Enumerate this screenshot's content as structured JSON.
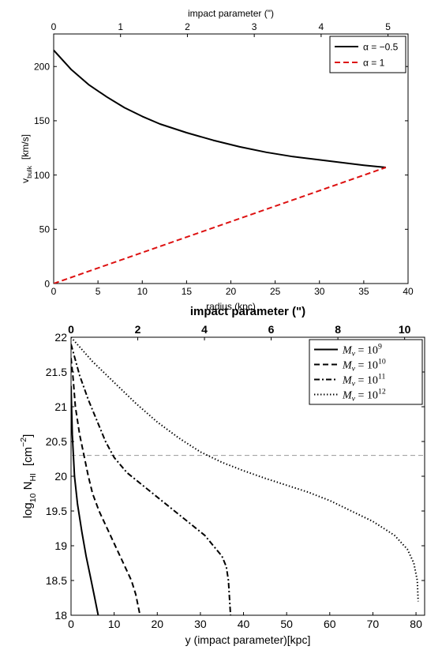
{
  "chart_data": [
    {
      "type": "line",
      "top_axis_label": "impact parameter (\")",
      "top_axis_ticks": [
        "0",
        "1",
        "2",
        "3",
        "4",
        "5"
      ],
      "xlabel": "radius (kpc)",
      "ylabel_main": "v",
      "ylabel_sub": "bulk",
      "ylabel_unit": "[km/s]",
      "xlim": [
        0,
        40
      ],
      "ylim": [
        0,
        230
      ],
      "top_xlim": [
        0,
        5.3
      ],
      "x_ticks": [
        "0",
        "5",
        "10",
        "15",
        "20",
        "25",
        "30",
        "35",
        "40"
      ],
      "y_ticks": [
        "0",
        "50",
        "100",
        "150",
        "200"
      ],
      "grid": false,
      "legend_position": "top-right",
      "series": [
        {
          "name": "α = −0.5",
          "color": "#000000",
          "dash": "solid",
          "points": [
            [
              0,
              215
            ],
            [
              2,
              197
            ],
            [
              4,
              183
            ],
            [
              6,
              172
            ],
            [
              8,
              162
            ],
            [
              10,
              154
            ],
            [
              12,
              147
            ],
            [
              15,
              139
            ],
            [
              18,
              132
            ],
            [
              21,
              126
            ],
            [
              24,
              121
            ],
            [
              27,
              117
            ],
            [
              30,
              114
            ],
            [
              33,
              111
            ],
            [
              35,
              109
            ],
            [
              37.5,
              107
            ]
          ]
        },
        {
          "name": "α = 1",
          "color": "#dd1111",
          "dash": "dashed",
          "points": [
            [
              0,
              0
            ],
            [
              37.5,
              107
            ]
          ]
        }
      ]
    },
    {
      "type": "line",
      "title": "impact parameter (\")",
      "top_axis_ticks": [
        "0",
        "2",
        "4",
        "6",
        "8",
        "10"
      ],
      "xlabel": "y (impact parameter)[kpc]",
      "ylabel_main": "log",
      "ylabel_sub1": "10",
      "ylabel_mid": " N",
      "ylabel_sub2": "HI",
      "ylabel_unit": "[cm",
      "ylabel_unit_sup": "−2",
      "ylabel_unit_end": "]",
      "xlim": [
        0,
        82
      ],
      "ylim": [
        18,
        22
      ],
      "top_xlim": [
        0,
        10.6
      ],
      "x_ticks": [
        "0",
        "10",
        "20",
        "30",
        "40",
        "50",
        "60",
        "70",
        "80"
      ],
      "y_ticks": [
        "18",
        "18.5",
        "19",
        "19.5",
        "20",
        "20.5",
        "21",
        "21.5",
        "22"
      ],
      "hline": 20.3,
      "grid": false,
      "legend_position": "top-right",
      "series": [
        {
          "name": "M",
          "name_sub": "v",
          "name_eq": " = 10",
          "name_sup": "9",
          "color": "#000000",
          "dash": "solid",
          "points": [
            [
              0,
              21.3
            ],
            [
              0.3,
              20.6
            ],
            [
              0.8,
              20.0
            ],
            [
              1.5,
              19.6
            ],
            [
              2.5,
              19.2
            ],
            [
              3.5,
              18.85
            ],
            [
              4.5,
              18.55
            ],
            [
              5.5,
              18.25
            ],
            [
              6.3,
              18.0
            ]
          ]
        },
        {
          "name": "M",
          "name_sub": "v",
          "name_eq": " = 10",
          "name_sup": "10",
          "color": "#000000",
          "dash": "dashed",
          "points": [
            [
              0,
              21.7
            ],
            [
              0.5,
              21.4
            ],
            [
              1.0,
              21.0
            ],
            [
              2.0,
              20.6
            ],
            [
              3.0,
              20.3
            ],
            [
              4.0,
              20.0
            ],
            [
              5.0,
              19.75
            ],
            [
              6.5,
              19.5
            ],
            [
              8.0,
              19.3
            ],
            [
              9.5,
              19.1
            ],
            [
              11.0,
              18.9
            ],
            [
              12.5,
              18.7
            ],
            [
              14.0,
              18.5
            ],
            [
              15.0,
              18.3
            ],
            [
              16.0,
              18.0
            ]
          ]
        },
        {
          "name": "M",
          "name_sub": "v",
          "name_eq": " = 10",
          "name_sup": "11",
          "color": "#000000",
          "dash": "dashdot",
          "points": [
            [
              0,
              21.9
            ],
            [
              2,
              21.45
            ],
            [
              4,
              21.1
            ],
            [
              6,
              20.8
            ],
            [
              8,
              20.5
            ],
            [
              10,
              20.27
            ],
            [
              13,
              20.05
            ],
            [
              17,
              19.85
            ],
            [
              21,
              19.65
            ],
            [
              25,
              19.45
            ],
            [
              28,
              19.3
            ],
            [
              31,
              19.15
            ],
            [
              33,
              19.0
            ],
            [
              35,
              18.85
            ],
            [
              36,
              18.7
            ],
            [
              36.5,
              18.5
            ],
            [
              37,
              18.0
            ]
          ]
        },
        {
          "name": "M",
          "name_sub": "v",
          "name_eq": " = 10",
          "name_sup": "12",
          "color": "#000000",
          "dash": "dotted",
          "points": [
            [
              0,
              22.0
            ],
            [
              5,
              21.65
            ],
            [
              10,
              21.35
            ],
            [
              15,
              21.05
            ],
            [
              20,
              20.78
            ],
            [
              25,
              20.55
            ],
            [
              30,
              20.35
            ],
            [
              35,
              20.2
            ],
            [
              40,
              20.08
            ],
            [
              45,
              19.97
            ],
            [
              50,
              19.87
            ],
            [
              55,
              19.77
            ],
            [
              60,
              19.65
            ],
            [
              65,
              19.5
            ],
            [
              70,
              19.35
            ],
            [
              75,
              19.15
            ],
            [
              78,
              18.95
            ],
            [
              79.5,
              18.75
            ],
            [
              80.3,
              18.5
            ],
            [
              80.5,
              18.2
            ]
          ]
        }
      ]
    }
  ]
}
